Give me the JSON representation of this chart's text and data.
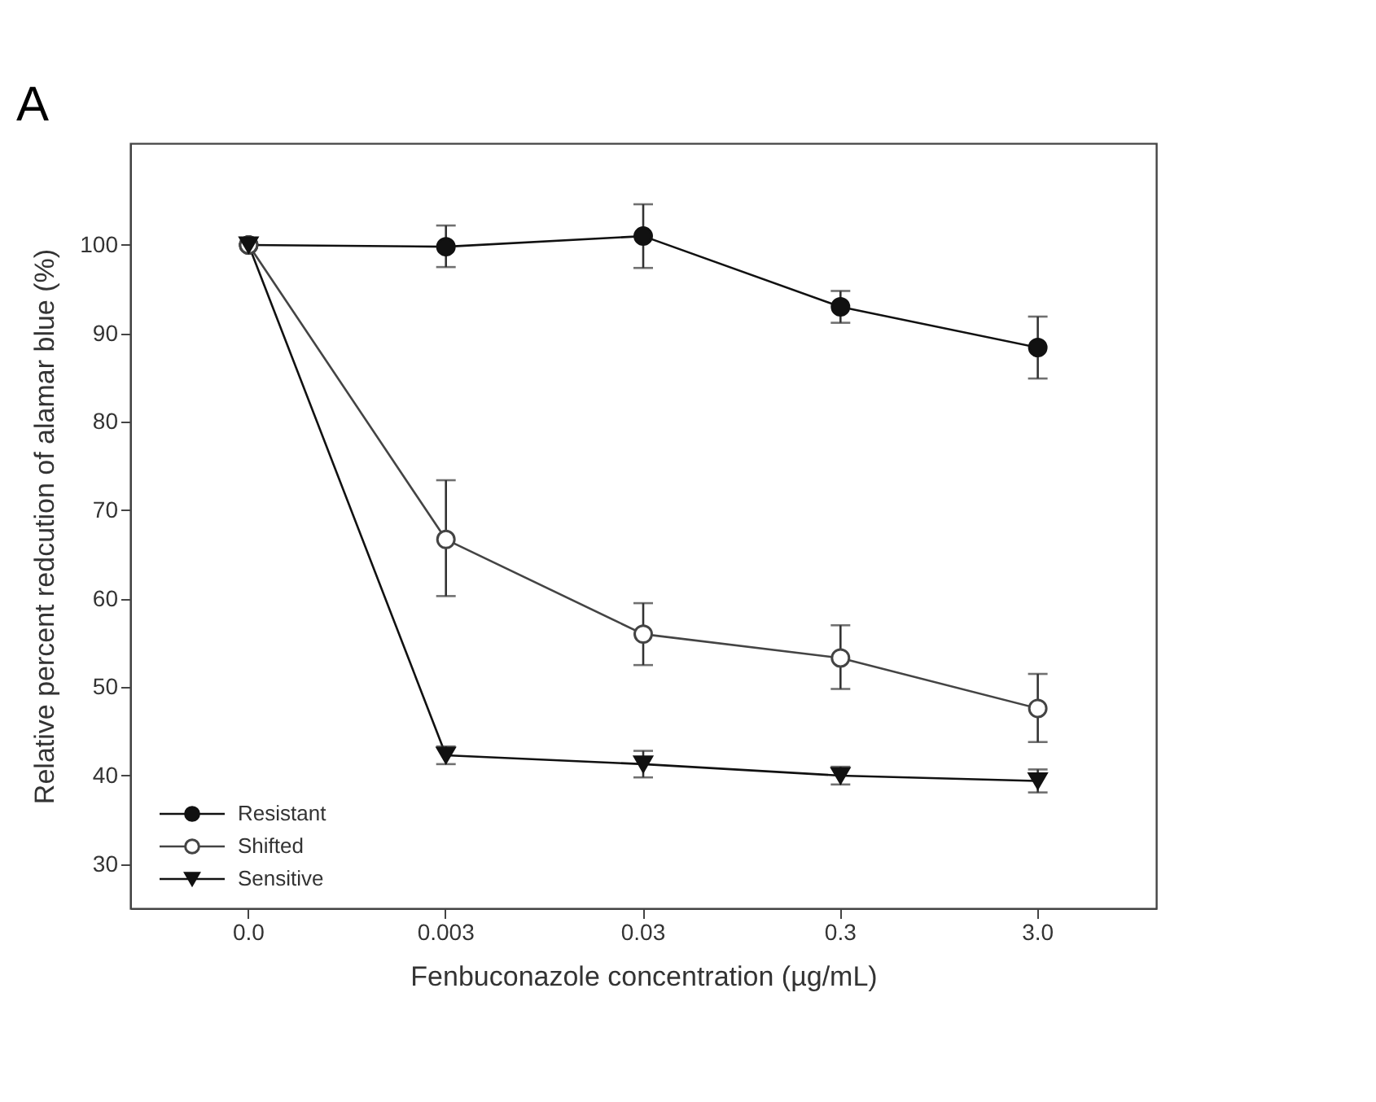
{
  "chart_data": {
    "type": "line",
    "annotations": [
      "A"
    ],
    "xlabel": "Fenbuconazole concentration (µg/mL)",
    "ylabel": "Relative percent redcution of alamar blue (%)",
    "categories": [
      "0.0",
      "0.003",
      "0.03",
      "0.3",
      "3.0"
    ],
    "series": [
      {
        "name": "Resistant",
        "color": "#111111",
        "marker": "circle",
        "values": [
          100,
          99.8,
          101,
          93,
          88.4
        ],
        "errors": [
          null,
          [
            97.5,
            102.2
          ],
          [
            97.4,
            104.6
          ],
          [
            91.2,
            94.8
          ],
          [
            84.9,
            91.9
          ]
        ]
      },
      {
        "name": "Shifted",
        "color": "#444444",
        "marker": "circle-open",
        "values": [
          100,
          66.7,
          56,
          53.3,
          47.6
        ],
        "errors": [
          null,
          [
            60.3,
            73.4
          ],
          [
            52.5,
            59.5
          ],
          [
            49.8,
            57
          ],
          [
            43.8,
            51.5
          ]
        ]
      },
      {
        "name": "Sensitive",
        "color": "#111111",
        "marker": "triangle-down",
        "values": [
          100,
          42.3,
          41.3,
          40,
          39.4
        ],
        "errors": [
          null,
          [
            41.3,
            43.3
          ],
          [
            39.8,
            42.8
          ],
          [
            39,
            41
          ],
          [
            38.1,
            40.7
          ]
        ]
      }
    ],
    "ylim": [
      25,
      111.5
    ],
    "yticks": [
      30,
      40,
      50,
      60,
      70,
      80,
      90,
      100
    ],
    "legend": "bottom left",
    "line_style": "solid"
  }
}
